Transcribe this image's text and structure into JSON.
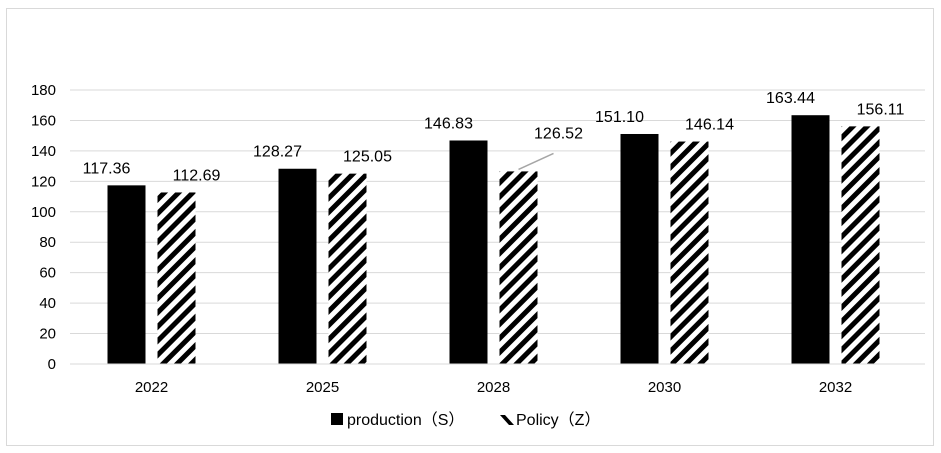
{
  "chart_data": {
    "type": "bar",
    "categories": [
      "2022",
      "2025",
      "2028",
      "2030",
      "2032"
    ],
    "series": [
      {
        "name": "production（S）",
        "values": [
          117.36,
          128.27,
          146.83,
          151.1,
          163.44
        ],
        "labels": [
          "117.36",
          "128.27",
          "146.83",
          "151.10",
          "163.44"
        ],
        "color": "#000000",
        "fill": "solid"
      },
      {
        "name": "Policy（Z）",
        "values": [
          112.69,
          125.05,
          126.52,
          146.14,
          156.11
        ],
        "labels": [
          "112.69",
          "125.05",
          "126.52",
          "146.14",
          "156.11"
        ],
        "color": "#000000",
        "fill": "diagonal-stripes"
      }
    ],
    "yticks": [
      "0",
      "20",
      "40",
      "60",
      "80",
      "100",
      "120",
      "140",
      "160",
      "180"
    ],
    "ylim": [
      0,
      180
    ],
    "grid": true,
    "legend": "bottom",
    "title": "",
    "xlabel": "",
    "ylabel": ""
  }
}
